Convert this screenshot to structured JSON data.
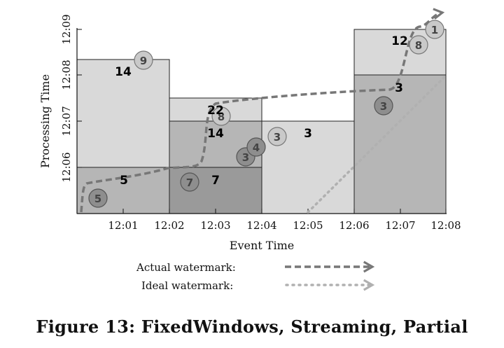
{
  "colors": {
    "pane_light": "#d9d9d9",
    "pane_mid": "#b6b6b6",
    "pane_dark": "#9a9a9a",
    "actual_watermark": "#777777",
    "ideal_watermark": "#b0b0b0"
  },
  "axes": {
    "x_title": "Event Time",
    "y_title": "Processing Time",
    "x_ticks": [
      "12:01",
      "12:02",
      "12:03",
      "12:04",
      "12:05",
      "12:06",
      "12:07",
      "12:08"
    ],
    "y_ticks": [
      "12:06",
      "12:07",
      "12:08",
      "12:09"
    ]
  },
  "windows": [
    {
      "event_range": [
        "12:00",
        "12:02"
      ],
      "panes": [
        {
          "proc_range": [
            "12:05",
            "12:06"
          ],
          "sum": "5",
          "shade": "mid"
        },
        {
          "proc_range": [
            "12:06",
            "12:08"
          ],
          "sum": "14",
          "shade": "light"
        }
      ]
    },
    {
      "event_range": [
        "12:02",
        "12:04"
      ],
      "panes": [
        {
          "proc_range": [
            "12:05",
            "12:06"
          ],
          "sum": "7",
          "shade": "dark"
        },
        {
          "proc_range": [
            "12:06",
            "12:07"
          ],
          "sum": "14",
          "shade": "mid"
        },
        {
          "proc_range": [
            "12:07",
            "12:07.5"
          ],
          "sum": "22",
          "shade": "light"
        }
      ]
    },
    {
      "event_range": [
        "12:04",
        "12:06"
      ],
      "panes": [
        {
          "proc_range": [
            "12:05",
            "12:07"
          ],
          "sum": "3",
          "shade": "light"
        }
      ]
    },
    {
      "event_range": [
        "12:06",
        "12:08"
      ],
      "panes": [
        {
          "proc_range": [
            "12:05",
            "12:08"
          ],
          "sum": "3",
          "shade": "mid"
        },
        {
          "proc_range": [
            "12:08",
            "12:09"
          ],
          "sum": "12",
          "shade": "light"
        }
      ]
    }
  ],
  "events": [
    {
      "value": "5"
    },
    {
      "value": "9"
    },
    {
      "value": "7"
    },
    {
      "value": "8"
    },
    {
      "value": "3"
    },
    {
      "value": "4"
    },
    {
      "value": "3"
    },
    {
      "value": "3"
    },
    {
      "value": "8"
    },
    {
      "value": "1"
    }
  ],
  "legend": {
    "actual_label": "Actual watermark:",
    "ideal_label": "Ideal watermark:"
  },
  "caption": "Figure 13: FixedWindows, Streaming, Partial"
}
